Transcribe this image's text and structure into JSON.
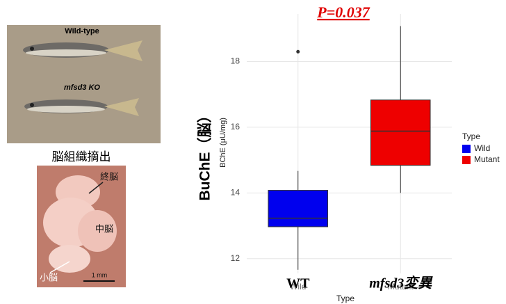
{
  "chart_data": {
    "type": "box",
    "annotation": "P=0.037",
    "categories": [
      "Wild",
      "Mutant"
    ],
    "overlay_category_labels": [
      "WT",
      "mfsd3変異"
    ],
    "overlay_ylabel": "BuChE（脳）",
    "ylabel": "BChE (μU/mg)",
    "xlabel": "Type",
    "legend_title": "Type",
    "series": [
      {
        "name": "Wild",
        "color": "#0000ee",
        "whisker_low": 11.66,
        "q1": 12.97,
        "median": 13.23,
        "q3": 14.08,
        "whisker_high": 14.67,
        "outliers": [
          18.3
        ]
      },
      {
        "name": "Mutant",
        "color": "#ee0000",
        "whisker_low": 14.0,
        "q1": 14.84,
        "median": 15.88,
        "q3": 16.83,
        "whisker_high": 19.08,
        "outliers": []
      }
    ],
    "ylim": [
      11.55,
      19.45
    ],
    "yticks": [
      12,
      14,
      16,
      18
    ],
    "grid": true
  },
  "photos": {
    "fish_top": "Wild-type",
    "fish_bottom": "mfsd3 KO",
    "brain_title": "脳組織摘出",
    "brain_labels": [
      "終脳",
      "中脳",
      "小脳"
    ],
    "scale_bar": "1 mm"
  }
}
